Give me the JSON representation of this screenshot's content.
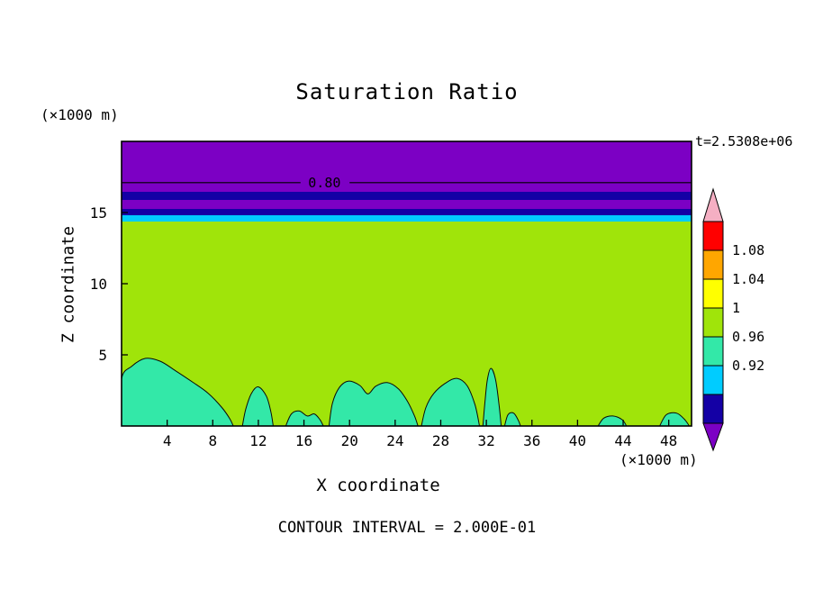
{
  "title": "Saturation Ratio",
  "annotations": {
    "time": "t=2.5308e+06",
    "contour_interval_text": "CONTOUR INTERVAL = 2.000E-01",
    "x_axis_unit": "(×1000 m)",
    "y_axis_unit": "(×1000 m)"
  },
  "axes": {
    "x_label": "X coordinate",
    "y_label": "Z coordinate"
  },
  "palette": {
    "pink": "#F5AFC3",
    "red": "#FF0000",
    "orange": "#FFA600",
    "yellow": "#FFFF00",
    "green": "#A0E40A",
    "springgreen": "#33E8A8",
    "cyan": "#00CCFF",
    "navy": "#1400A5",
    "purple": "#7C00C4",
    "line": "#000000"
  },
  "colorbar": {
    "labels": [
      "1.08",
      "1.04",
      "1",
      "0.96",
      "0.92"
    ],
    "colors": [
      "pink",
      "red",
      "orange",
      "yellow",
      "green",
      "springgreen",
      "cyan",
      "navy",
      "purple"
    ]
  },
  "chart_data": {
    "type": "heatmap",
    "subtype": "filled-contour",
    "title": "Saturation Ratio",
    "xlabel": "X coordinate (×1000 m)",
    "ylabel": "Z coordinate (×1000 m)",
    "time_annotation": "t=2.5308e+06",
    "contour_interval": 0.2,
    "xlim": [
      0,
      50
    ],
    "ylim": [
      0,
      20
    ],
    "x_ticks": [
      4,
      8,
      12,
      16,
      20,
      24,
      28,
      32,
      36,
      40,
      44,
      48
    ],
    "y_ticks": [
      5,
      10,
      15
    ],
    "color_levels": {
      "pink": ">1.12",
      "red": "1.08-1.12",
      "orange": "1.04-1.08",
      "yellow": "1.00-1.04",
      "green": "0.96-1.00",
      "springgreen": "0.92-0.96",
      "cyan": "0.88-0.92",
      "navy": "0.84-0.88",
      "purple": "<0.84"
    },
    "layers": [
      {
        "color": "green",
        "z_from": 0,
        "z_to": 14.37
      },
      {
        "color": "cyan",
        "z_from": 14.37,
        "z_to": 14.8
      },
      {
        "color": "navy",
        "z_from": 14.8,
        "z_to": 15.25
      },
      {
        "color": "purple",
        "z_from": 15.25,
        "z_to": 15.9
      },
      {
        "color": "navy",
        "z_from": 15.9,
        "z_to": 16.46
      },
      {
        "color": "purple",
        "z_from": 16.46,
        "z_to": 20.0
      }
    ],
    "contour_line": {
      "level": "0.80",
      "z": 17.1,
      "label_x": 17.8,
      "gap": [
        15.7,
        20.0
      ]
    },
    "blobs": [
      {
        "color": "springgreen",
        "points": [
          [
            0,
            0
          ],
          [
            0,
            3.3
          ],
          [
            0.9,
            4.2
          ],
          [
            2.1,
            4.75
          ],
          [
            3.4,
            4.55
          ],
          [
            4.7,
            3.9
          ],
          [
            6.2,
            3.1
          ],
          [
            7.6,
            2.3
          ],
          [
            8.8,
            1.3
          ],
          [
            9.5,
            0.5
          ],
          [
            9.8,
            0
          ]
        ]
      },
      {
        "color": "springgreen",
        "points": [
          [
            10.6,
            0
          ],
          [
            10.9,
            1.2
          ],
          [
            11.4,
            2.3
          ],
          [
            12.0,
            2.75
          ],
          [
            12.7,
            2.1
          ],
          [
            13.1,
            1.0
          ],
          [
            13.3,
            0
          ]
        ]
      },
      {
        "color": "springgreen",
        "points": [
          [
            14.4,
            0
          ],
          [
            14.9,
            0.85
          ],
          [
            15.6,
            1.05
          ],
          [
            16.3,
            0.7
          ],
          [
            16.9,
            0.85
          ],
          [
            17.4,
            0.45
          ],
          [
            17.7,
            0
          ]
        ]
      },
      {
        "color": "springgreen",
        "points": [
          [
            18.2,
            0
          ],
          [
            18.5,
            1.6
          ],
          [
            19.1,
            2.7
          ],
          [
            19.9,
            3.15
          ],
          [
            20.9,
            2.85
          ],
          [
            21.6,
            2.25
          ],
          [
            22.3,
            2.8
          ],
          [
            23.3,
            3.05
          ],
          [
            24.3,
            2.6
          ],
          [
            25.1,
            1.7
          ],
          [
            25.7,
            0.7
          ],
          [
            26.0,
            0
          ]
        ]
      },
      {
        "color": "springgreen",
        "points": [
          [
            26.3,
            0
          ],
          [
            26.7,
            1.3
          ],
          [
            27.4,
            2.3
          ],
          [
            28.4,
            3.0
          ],
          [
            29.4,
            3.35
          ],
          [
            30.3,
            2.85
          ],
          [
            31.0,
            1.5
          ],
          [
            31.4,
            0
          ]
        ]
      },
      {
        "color": "springgreen",
        "points": [
          [
            31.7,
            0
          ],
          [
            31.9,
            1.9
          ],
          [
            32.1,
            3.3
          ],
          [
            32.4,
            4.05
          ],
          [
            32.8,
            3.3
          ],
          [
            33.1,
            1.6
          ],
          [
            33.3,
            0
          ]
        ]
      },
      {
        "color": "springgreen",
        "points": [
          [
            33.6,
            0
          ],
          [
            33.9,
            0.8
          ],
          [
            34.4,
            0.9
          ],
          [
            34.8,
            0.4
          ],
          [
            35.0,
            0
          ]
        ]
      },
      {
        "color": "springgreen",
        "points": [
          [
            41.8,
            0
          ],
          [
            42.3,
            0.55
          ],
          [
            43.1,
            0.7
          ],
          [
            43.9,
            0.45
          ],
          [
            44.3,
            0
          ]
        ]
      },
      {
        "color": "springgreen",
        "points": [
          [
            47.2,
            0
          ],
          [
            47.8,
            0.8
          ],
          [
            48.7,
            0.9
          ],
          [
            49.4,
            0.45
          ],
          [
            49.8,
            0
          ]
        ]
      }
    ]
  }
}
